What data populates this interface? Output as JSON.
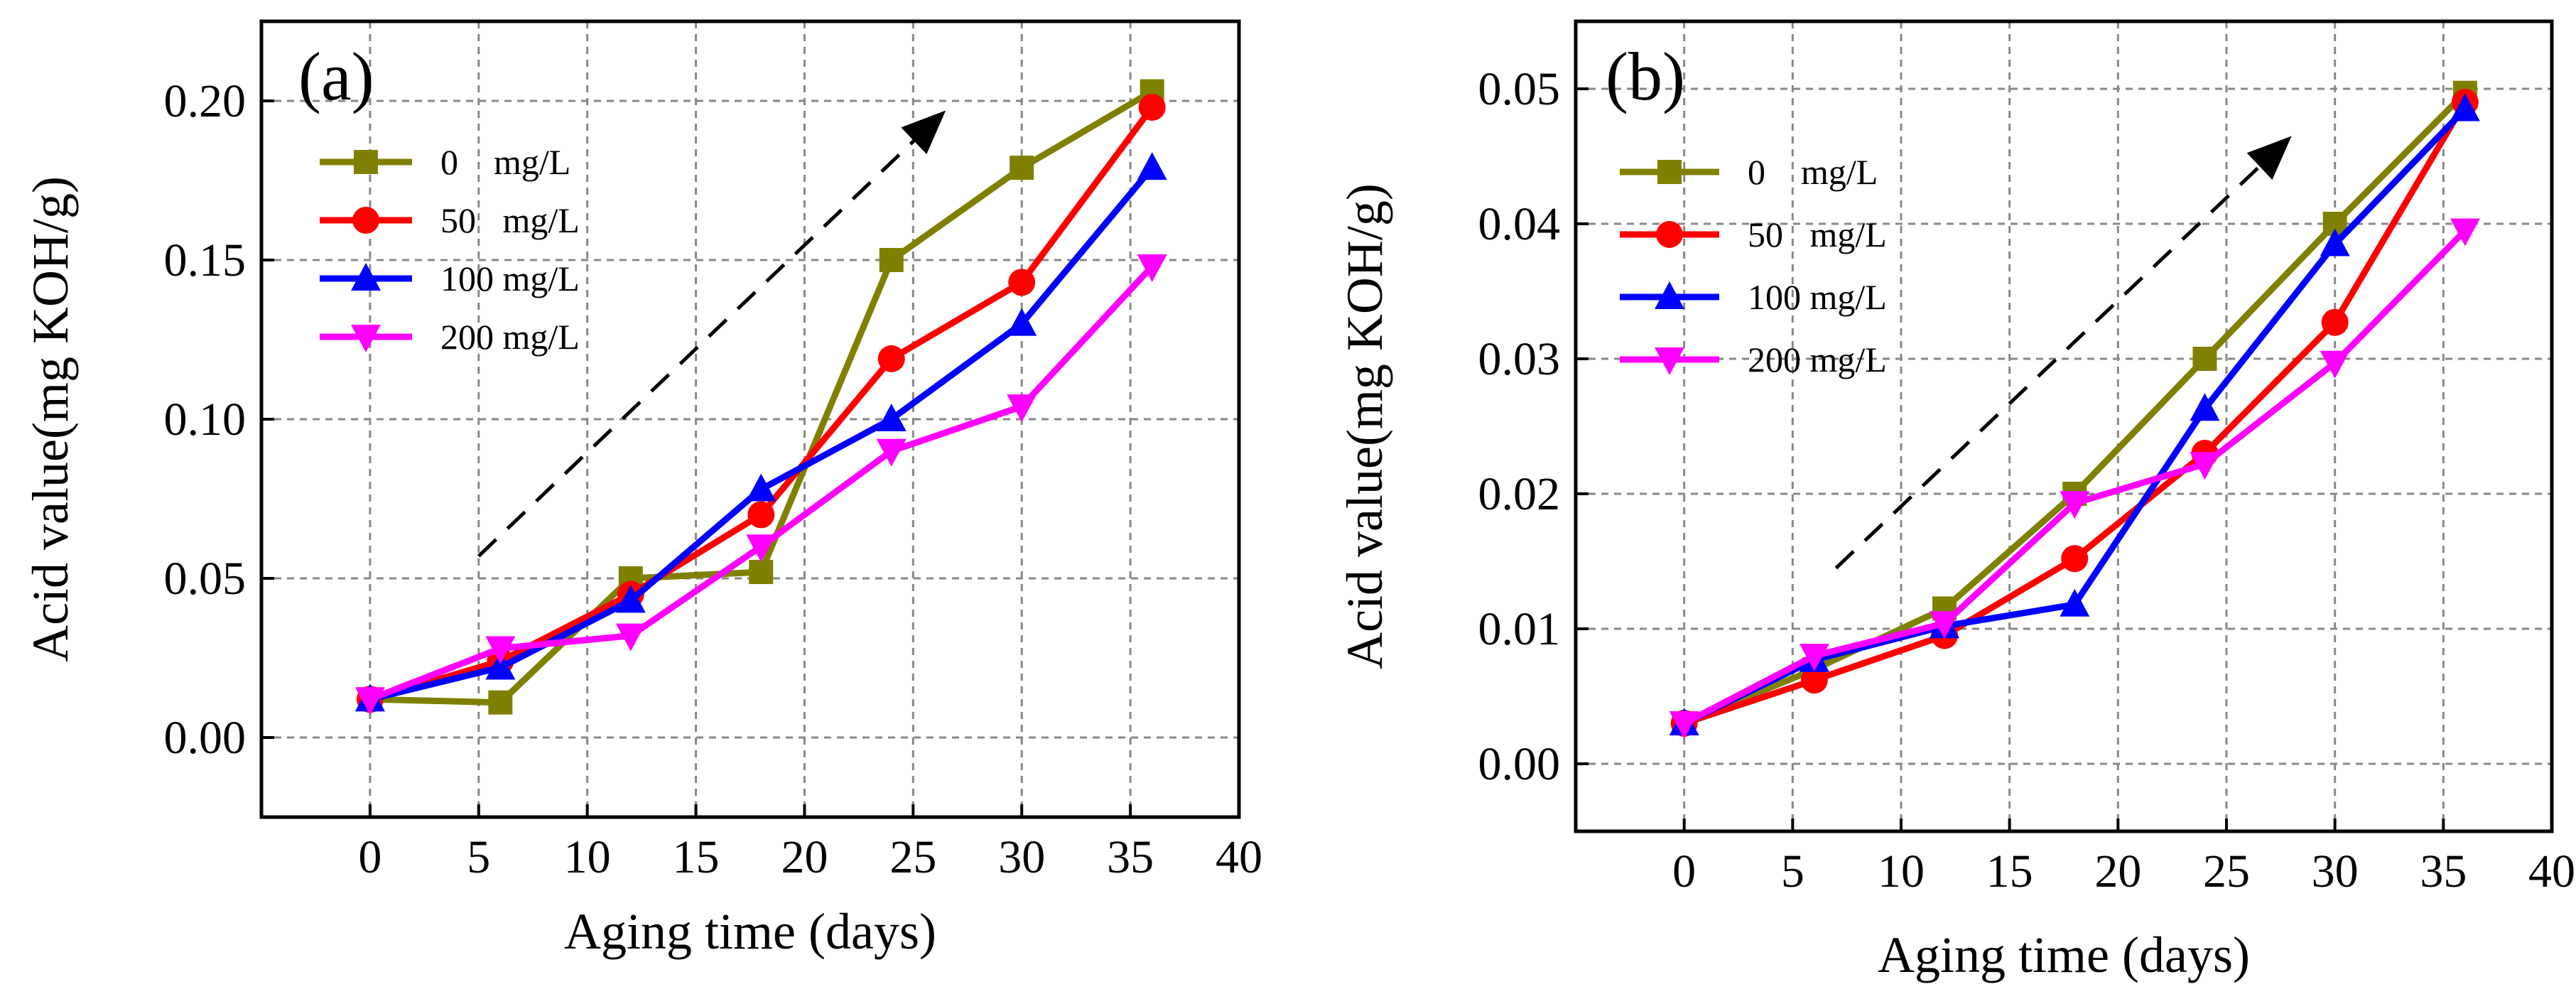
{
  "figure": {
    "panels": [
      "a",
      "b"
    ]
  },
  "chart_data": [
    {
      "type": "line",
      "panel_label": "(a)",
      "title": "",
      "xlabel": "Aging time (days)",
      "ylabel": "Acid value(mg KOH/g)",
      "xlim": [
        -5,
        40
      ],
      "ylim": [
        -0.025,
        0.225
      ],
      "xticks": [
        0,
        5,
        10,
        15,
        20,
        25,
        30,
        35,
        40
      ],
      "xtick_labels": [
        "0",
        "5",
        "10",
        "15",
        "20",
        "25",
        "30",
        "35",
        "40"
      ],
      "yticks": [
        0.0,
        0.05,
        0.1,
        0.15,
        0.2
      ],
      "ytick_labels": [
        "0.00",
        "0.05",
        "0.10",
        "0.15",
        "0.20"
      ],
      "grid": true,
      "legend_position": "upper-left",
      "x": [
        0,
        6,
        12,
        18,
        24,
        30,
        36
      ],
      "series": [
        {
          "name": "0    mg/L",
          "color": "#808000",
          "marker": "square",
          "values": [
            0.012,
            0.011,
            0.05,
            0.052,
            0.15,
            0.179,
            0.203
          ]
        },
        {
          "name": "50   mg/L",
          "color": "#ff0000",
          "marker": "circle",
          "values": [
            0.012,
            0.024,
            0.045,
            0.07,
            0.119,
            0.143,
            0.198
          ]
        },
        {
          "name": "100 mg/L",
          "color": "#0000ff",
          "marker": "triangle-up",
          "values": [
            0.012,
            0.022,
            0.043,
            0.078,
            0.1,
            0.13,
            0.179
          ]
        },
        {
          "name": "200 mg/L",
          "color": "#ff00ff",
          "marker": "triangle-down",
          "values": [
            0.012,
            0.028,
            0.032,
            0.06,
            0.09,
            0.104,
            0.148
          ]
        }
      ],
      "annotations": [
        {
          "type": "dashed-arrow",
          "from": [
            5,
            0.057
          ],
          "to": [
            26.5,
            0.197
          ]
        }
      ]
    },
    {
      "type": "line",
      "panel_label": "(b)",
      "title": "",
      "xlabel": "Aging time (days)",
      "ylabel": "Acid value(mg KOH/g)",
      "xlim": [
        -5,
        40
      ],
      "ylim": [
        -0.005,
        0.055
      ],
      "xticks": [
        0,
        5,
        10,
        15,
        20,
        25,
        30,
        35,
        40
      ],
      "xtick_labels": [
        "0",
        "5",
        "10",
        "15",
        "20",
        "25",
        "30",
        "35",
        "40"
      ],
      "yticks": [
        0.0,
        0.01,
        0.02,
        0.03,
        0.04,
        0.05
      ],
      "ytick_labels": [
        "0.00",
        "0.01",
        "0.02",
        "0.03",
        "0.04",
        "0.05"
      ],
      "grid": true,
      "legend_position": "upper-left",
      "x": [
        0,
        6,
        12,
        18,
        24,
        30,
        36
      ],
      "series": [
        {
          "name": "0    mg/L",
          "color": "#808000",
          "marker": "square",
          "values": [
            0.003,
            0.007,
            0.0115,
            0.02,
            0.03,
            0.04,
            0.0497
          ]
        },
        {
          "name": "50   mg/L",
          "color": "#ff0000",
          "marker": "circle",
          "values": [
            0.003,
            0.0062,
            0.0095,
            0.0152,
            0.023,
            0.0327,
            0.049
          ]
        },
        {
          "name": "100 mg/L",
          "color": "#0000ff",
          "marker": "triangle-up",
          "values": [
            0.003,
            0.0077,
            0.0102,
            0.0118,
            0.0263,
            0.0385,
            0.0485
          ]
        },
        {
          "name": "200 mg/L",
          "color": "#ff00ff",
          "marker": "triangle-down",
          "values": [
            0.003,
            0.008,
            0.0104,
            0.0193,
            0.0222,
            0.0297,
            0.0395
          ]
        }
      ],
      "annotations": [
        {
          "type": "dashed-arrow",
          "from": [
            7,
            0.0145
          ],
          "to": [
            28,
            0.0465
          ]
        }
      ]
    }
  ]
}
